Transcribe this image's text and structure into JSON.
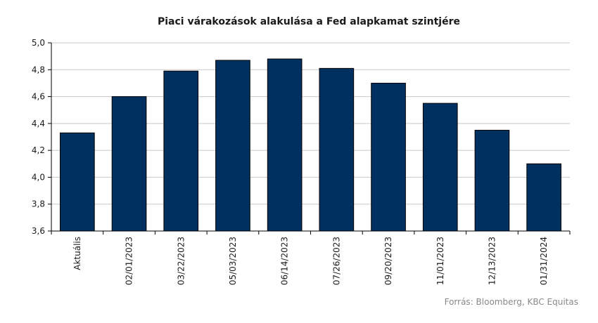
{
  "chart_data": {
    "type": "bar",
    "title": "Piaci várakozások alakulása a Fed  alapkamat szintjére",
    "categories": [
      "Aktuális",
      "02/01/2023",
      "03/22/2023",
      "05/03/2023",
      "06/14/2023",
      "07/26/2023",
      "09/20/2023",
      "11/01/2023",
      "12/13/2023",
      "01/31/2024"
    ],
    "values": [
      4.33,
      4.6,
      4.79,
      4.87,
      4.88,
      4.81,
      4.7,
      4.55,
      4.35,
      4.1
    ],
    "ylim": [
      3.6,
      5.0
    ],
    "yticks": [
      "3,6",
      "3,8",
      "4,0",
      "4,2",
      "4,4",
      "4,6",
      "4,8",
      "5,0"
    ],
    "grid": true,
    "colors": {
      "bar": "#003060",
      "grid": "#c8c8c8",
      "axis": "#000000"
    },
    "source": "Forrás: Bloomberg,  KBC Equitas"
  }
}
